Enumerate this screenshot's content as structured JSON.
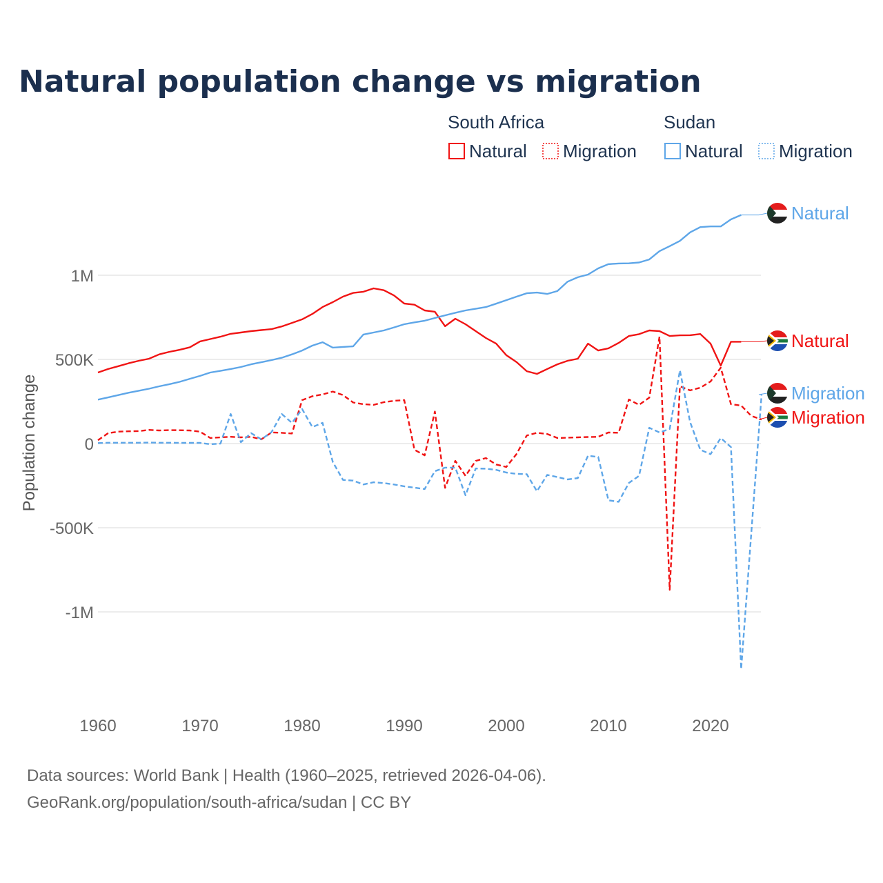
{
  "chart_data": {
    "type": "line",
    "title": "Natural population change vs migration",
    "ylabel": "Population change",
    "xlabel": "",
    "xlim": [
      1960,
      2025
    ],
    "ylim": [
      -1500000,
      1450000
    ],
    "grid": true,
    "x_ticks": [
      {
        "value": 1960,
        "label": "1960"
      },
      {
        "value": 1970,
        "label": "1970"
      },
      {
        "value": 1980,
        "label": "1980"
      },
      {
        "value": 1990,
        "label": "1990"
      },
      {
        "value": 2000,
        "label": "2000"
      },
      {
        "value": 2010,
        "label": "2010"
      },
      {
        "value": 2020,
        "label": "2020"
      }
    ],
    "y_ticks": [
      {
        "value": 1000000,
        "label": "1M"
      },
      {
        "value": 500000,
        "label": "500K"
      },
      {
        "value": 0,
        "label": "0"
      },
      {
        "value": -500000,
        "label": "-500K"
      },
      {
        "value": -1000000,
        "label": "-1M"
      }
    ],
    "legend": {
      "placement": "top-right",
      "groups": [
        {
          "country": "South Africa",
          "items": [
            "Natural",
            "Migration"
          ]
        },
        {
          "country": "Sudan",
          "items": [
            "Natural",
            "Migration"
          ]
        }
      ]
    },
    "series": [
      {
        "name": "South Africa Natural",
        "country": "South Africa",
        "kind": "Natural",
        "label": "Natural",
        "color": "#f01414",
        "dashed": false,
        "start_year": 1960,
        "values": [
          422000,
          443000,
          460000,
          477000,
          492000,
          504000,
          530000,
          545000,
          557000,
          572000,
          607000,
          621000,
          635000,
          652000,
          660000,
          668000,
          674000,
          680000,
          696000,
          717000,
          738000,
          770000,
          811000,
          840000,
          873000,
          895000,
          902000,
          922000,
          911000,
          880000,
          832000,
          825000,
          791000,
          783000,
          697000,
          742000,
          709000,
          668000,
          627000,
          594000,
          525000,
          484000,
          430000,
          414000,
          443000,
          471000,
          492000,
          504000,
          594000,
          553000,
          566000,
          598000,
          639000,
          650000,
          672000,
          668000,
          639000,
          643000,
          644000,
          651000,
          594000,
          463000,
          605000,
          605000
        ]
      },
      {
        "name": "South Africa Migration",
        "country": "South Africa",
        "kind": "Migration",
        "label": "Migration",
        "color": "#f01414",
        "dashed": true,
        "start_year": 1960,
        "values": [
          20000,
          62000,
          71000,
          73000,
          74000,
          81000,
          78000,
          80000,
          79000,
          78000,
          71000,
          33000,
          37000,
          40000,
          37000,
          40000,
          25000,
          66000,
          64000,
          60000,
          258000,
          281000,
          292000,
          309000,
          288000,
          244000,
          234000,
          230000,
          246000,
          254000,
          258000,
          -37000,
          -70000,
          190000,
          -263000,
          -103000,
          -192000,
          -103000,
          -86000,
          -124000,
          -139000,
          -62000,
          48000,
          64000,
          57000,
          33000,
          35000,
          37000,
          39000,
          40000,
          66000,
          64000,
          262000,
          230000,
          273000,
          635000,
          -869000,
          340000,
          316000,
          332000,
          369000,
          451000,
          234000,
          226000,
          164000,
          143000
        ]
      },
      {
        "name": "Sudan Natural",
        "country": "Sudan",
        "kind": "Natural",
        "label": "Natural",
        "color": "#5ea6e8",
        "dashed": false,
        "start_year": 1960,
        "values": [
          261000,
          274000,
          288000,
          302000,
          314000,
          326000,
          340000,
          353000,
          367000,
          385000,
          402000,
          422000,
          432000,
          443000,
          455000,
          471000,
          483000,
          496000,
          510000,
          530000,
          553000,
          582000,
          602000,
          570000,
          574000,
          578000,
          648000,
          660000,
          672000,
          690000,
          709000,
          720000,
          730000,
          746000,
          762000,
          777000,
          791000,
          801000,
          811000,
          831000,
          852000,
          873000,
          893000,
          897000,
          889000,
          906000,
          962000,
          988000,
          1004000,
          1041000,
          1066000,
          1070000,
          1071000,
          1076000,
          1094000,
          1143000,
          1173000,
          1204000,
          1255000,
          1286000,
          1290000,
          1290000,
          1332000,
          1358000
        ]
      },
      {
        "name": "Sudan Migration",
        "country": "Sudan",
        "kind": "Migration",
        "label": "Migration",
        "color": "#5ea6e8",
        "dashed": true,
        "start_year": 1960,
        "values": [
          3000,
          5000,
          5000,
          5000,
          5000,
          6000,
          5000,
          5000,
          4000,
          4000,
          4000,
          -4000,
          0,
          176000,
          8000,
          62000,
          25000,
          68000,
          176000,
          123000,
          205000,
          98000,
          123000,
          -109000,
          -216000,
          -220000,
          -243000,
          -230000,
          -235000,
          -243000,
          -254000,
          -262000,
          -270000,
          -164000,
          -143000,
          -143000,
          -307000,
          -148000,
          -149000,
          -156000,
          -172000,
          -180000,
          -182000,
          -283000,
          -186000,
          -199000,
          -213000,
          -205000,
          -72000,
          -80000,
          -337000,
          -346000,
          -234000,
          -192000,
          94000,
          66000,
          87000,
          435000,
          127000,
          -37000,
          -63000,
          33000,
          -21000,
          -1340000,
          -525000,
          291000
        ]
      }
    ]
  },
  "footer": {
    "line1": "Data sources: World Bank | Health (1960–2025, retrieved 2026-04-06).",
    "line2": "GeoRank.org/population/south-africa/sudan | CC BY"
  },
  "flags": {
    "south_africa": "south-africa-flag-icon",
    "sudan": "sudan-flag-icon"
  }
}
